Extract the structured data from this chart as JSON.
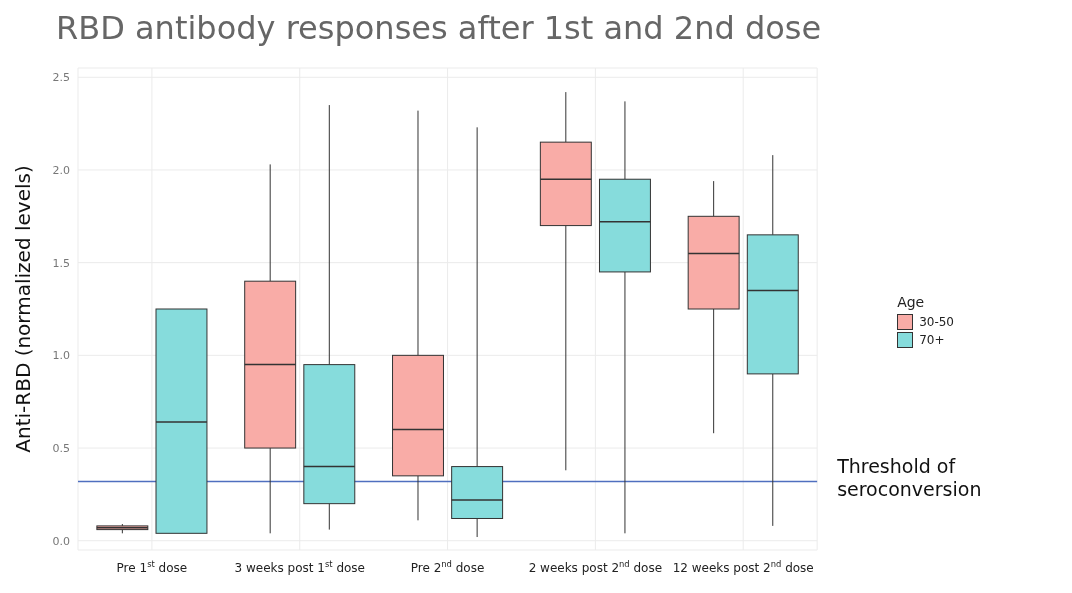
{
  "chart_data": {
    "type": "box",
    "title": "RBD antibody responses after 1st and 2nd dose",
    "ylabel": "Anti-RBD (normalized levels)",
    "legend_title": "Age",
    "categories": [
      "Pre 1$^{st}$ dose",
      "3 weeks post 1$^{st}$ dose",
      "Pre 2$^{nd}$ dose",
      "2 weeks post 2$^{nd}$ dose",
      "12 weeks post 2$^{nd}$ dose"
    ],
    "series": [
      {
        "name": "30-50",
        "color": "#f9aca7",
        "boxes": [
          {
            "low": 0.04,
            "q1": 0.06,
            "median": 0.07,
            "q3": 0.08,
            "high": 0.09
          },
          {
            "low": 0.04,
            "q1": 0.5,
            "median": 0.95,
            "q3": 1.4,
            "high": 2.03
          },
          {
            "low": 0.11,
            "q1": 0.35,
            "median": 0.6,
            "q3": 1.0,
            "high": 2.32
          },
          {
            "low": 0.38,
            "q1": 1.7,
            "median": 1.95,
            "q3": 2.15,
            "high": 2.42
          },
          {
            "low": 0.58,
            "q1": 1.25,
            "median": 1.55,
            "q3": 1.75,
            "high": 1.94
          }
        ]
      },
      {
        "name": "70+",
        "color": "#86dcdc",
        "boxes": [
          {
            "low": 0.04,
            "q1": 0.04,
            "median": 0.64,
            "q3": 1.25,
            "high": 1.25
          },
          {
            "low": 0.06,
            "q1": 0.2,
            "median": 0.4,
            "q3": 0.95,
            "high": 2.35
          },
          {
            "low": 0.02,
            "q1": 0.12,
            "median": 0.22,
            "q3": 0.4,
            "high": 2.23
          },
          {
            "low": 0.04,
            "q1": 1.45,
            "median": 1.72,
            "q3": 1.95,
            "high": 2.37
          },
          {
            "low": 0.08,
            "q1": 0.9,
            "median": 1.35,
            "q3": 1.65,
            "high": 2.08
          }
        ]
      }
    ],
    "ylim": [
      -0.05,
      2.55
    ],
    "yticks": [
      {
        "value": 0,
        "label": "0.0"
      },
      {
        "value": 0.5,
        "label": "0.5"
      },
      {
        "value": 1,
        "label": "1.0"
      },
      {
        "value": 1.5,
        "label": "1.5"
      },
      {
        "value": 2,
        "label": "2.0"
      },
      {
        "value": 2.5,
        "label": "2.5"
      }
    ],
    "ref_lines": [
      {
        "axis": "y",
        "value": 0.32,
        "label": "Threshold of seroconversion",
        "color": "#4f6fbf"
      }
    ],
    "grid": true,
    "legend": "right"
  }
}
